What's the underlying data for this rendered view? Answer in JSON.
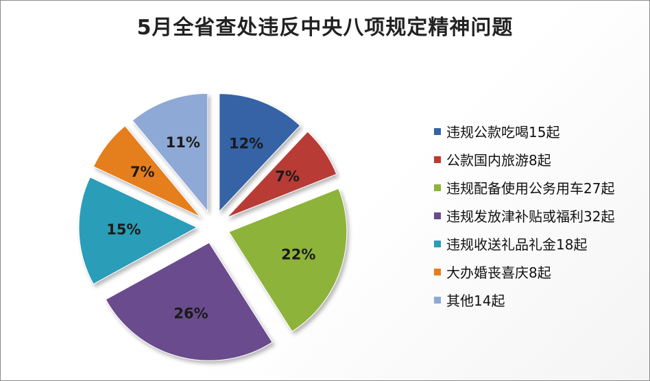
{
  "chart_data": {
    "type": "pie",
    "title": "5月全省查处违反中央八项规定精神问题",
    "slices": [
      {
        "label": "违规公款吃喝15起",
        "percent": 12,
        "color": "#3564A6"
      },
      {
        "label": "公款国内旅游8起",
        "percent": 7,
        "color": "#B83B36"
      },
      {
        "label": "违规配备使用公务用车27起",
        "percent": 22,
        "color": "#8DB33A"
      },
      {
        "label": "违规发放津补贴或福利32起",
        "percent": 26,
        "color": "#6A4B8D"
      },
      {
        "label": "违规收送礼品礼金18起",
        "percent": 15,
        "color": "#2B9DB8"
      },
      {
        "label": "大办婚丧喜庆8起",
        "percent": 7,
        "color": "#E57E1F"
      },
      {
        "label": "其他14起",
        "percent": 11,
        "color": "#8FA9D6"
      }
    ],
    "legend_position": "right",
    "exploded": true
  }
}
